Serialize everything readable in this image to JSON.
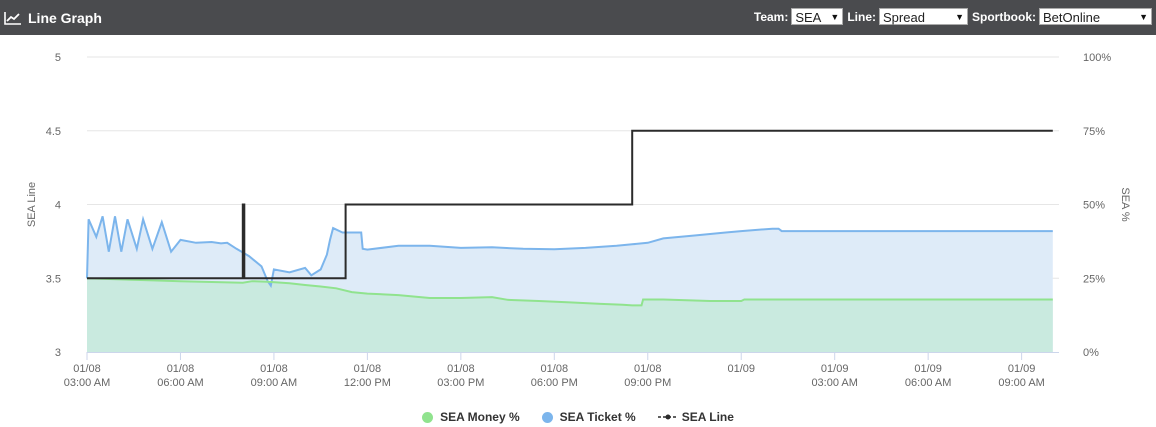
{
  "header": {
    "title": "Line Graph",
    "icon": "line-chart-icon",
    "team_label": "Team:",
    "team_value": "SEA",
    "line_label": "Line:",
    "line_value": "Spread",
    "sportbook_label": "Sportbook:",
    "sportbook_value": "BetOnline"
  },
  "colors": {
    "header_bg": "#4a4b4e",
    "money": "#90e38e",
    "money_fill": "#c9eadf",
    "ticket": "#7cb5ec",
    "ticket_fill": "#deebf8",
    "line": "#2b2b2b",
    "grid": "#e6e6e6"
  },
  "chart_data": {
    "type": "line",
    "x_unit": "hours since 01/08 03:00 AM",
    "x_range": [
      0,
      31.2
    ],
    "x_ticks": [
      {
        "x": 0,
        "date": "01/08",
        "time": "03:00 AM"
      },
      {
        "x": 3,
        "date": "01/08",
        "time": "06:00 AM"
      },
      {
        "x": 6,
        "date": "01/08",
        "time": "09:00 AM"
      },
      {
        "x": 9,
        "date": "01/08",
        "time": "12:00 PM"
      },
      {
        "x": 12,
        "date": "01/08",
        "time": "03:00 PM"
      },
      {
        "x": 15,
        "date": "01/08",
        "time": "06:00 PM"
      },
      {
        "x": 18,
        "date": "01/08",
        "time": "09:00 PM"
      },
      {
        "x": 21,
        "date": "01/09",
        "time": ""
      },
      {
        "x": 24,
        "date": "01/09",
        "time": "03:00 AM"
      },
      {
        "x": 27,
        "date": "01/09",
        "time": "06:00 AM"
      },
      {
        "x": 30,
        "date": "01/09",
        "time": "09:00 AM"
      }
    ],
    "y_left": {
      "label": "SEA Line",
      "range": [
        3,
        5
      ],
      "ticks": [
        "3",
        "3.5",
        "4",
        "4.5",
        "5"
      ]
    },
    "y_right": {
      "label": "SEA %",
      "range": [
        0,
        100
      ],
      "ticks": [
        "0%",
        "25%",
        "50%",
        "75%",
        "100%"
      ]
    },
    "grid": true,
    "legend_position": "bottom-center",
    "series": [
      {
        "name": "SEA Money %",
        "axis": "right",
        "kind": "area",
        "points": [
          [
            0,
            25
          ],
          [
            2,
            24.3
          ],
          [
            3,
            24
          ],
          [
            5,
            23.5
          ],
          [
            5.3,
            24
          ],
          [
            5.8,
            23.8
          ],
          [
            6.5,
            23.3
          ],
          [
            7,
            22.7
          ],
          [
            7.5,
            22.2
          ],
          [
            8,
            21.6
          ],
          [
            8.5,
            20.3
          ],
          [
            9,
            19.8
          ],
          [
            10,
            19.3
          ],
          [
            11,
            18.3
          ],
          [
            12,
            18.3
          ],
          [
            13,
            18.6
          ],
          [
            13.5,
            17.7
          ],
          [
            14.5,
            17.3
          ],
          [
            15.5,
            16.8
          ],
          [
            16.5,
            16.3
          ],
          [
            17.2,
            16
          ],
          [
            17.5,
            15.8
          ],
          [
            17.8,
            15.8
          ],
          [
            17.85,
            17.8
          ],
          [
            18.5,
            17.8
          ],
          [
            20,
            17.3
          ],
          [
            21,
            17.3
          ],
          [
            21.1,
            17.8
          ],
          [
            31,
            17.8
          ]
        ]
      },
      {
        "name": "SEA Ticket %",
        "axis": "right",
        "kind": "area",
        "points": [
          [
            0,
            25
          ],
          [
            0.05,
            45
          ],
          [
            0.3,
            39
          ],
          [
            0.5,
            46
          ],
          [
            0.7,
            34
          ],
          [
            0.9,
            46
          ],
          [
            1.1,
            34
          ],
          [
            1.3,
            45
          ],
          [
            1.6,
            35
          ],
          [
            1.8,
            45
          ],
          [
            2.1,
            35
          ],
          [
            2.4,
            44
          ],
          [
            2.7,
            34
          ],
          [
            3,
            38
          ],
          [
            3.5,
            37
          ],
          [
            4,
            37.3
          ],
          [
            4.3,
            36.8
          ],
          [
            4.5,
            37
          ],
          [
            4.8,
            35
          ],
          [
            5.2,
            32.5
          ],
          [
            5.6,
            29
          ],
          [
            5.8,
            24
          ],
          [
            5.9,
            22.5
          ],
          [
            6,
            28
          ],
          [
            6.5,
            27
          ],
          [
            7,
            28.5
          ],
          [
            7.2,
            26
          ],
          [
            7.5,
            28
          ],
          [
            7.7,
            33
          ],
          [
            7.8,
            38
          ],
          [
            7.9,
            42
          ],
          [
            8.2,
            40.5
          ],
          [
            8.8,
            40.5
          ],
          [
            8.85,
            35
          ],
          [
            9,
            34.7
          ],
          [
            10,
            36
          ],
          [
            11,
            36
          ],
          [
            12,
            35.3
          ],
          [
            13,
            35.5
          ],
          [
            14,
            35
          ],
          [
            15,
            34.8
          ],
          [
            16,
            35.3
          ],
          [
            17,
            36
          ],
          [
            17.5,
            36.5
          ],
          [
            18,
            37
          ],
          [
            18.5,
            38.5
          ],
          [
            19.5,
            39.5
          ],
          [
            20.5,
            40.5
          ],
          [
            21,
            41
          ],
          [
            22,
            41.8
          ],
          [
            22.2,
            41.8
          ],
          [
            22.3,
            41
          ],
          [
            31,
            41
          ]
        ]
      },
      {
        "name": "SEA Line",
        "axis": "left",
        "kind": "step",
        "points": [
          [
            0,
            3.5
          ],
          [
            5,
            3.5
          ],
          [
            5,
            4
          ],
          [
            5.05,
            4
          ],
          [
            5.05,
            3.5
          ],
          [
            8.3,
            3.5
          ],
          [
            8.3,
            4
          ],
          [
            17.5,
            4
          ],
          [
            17.5,
            4.5
          ],
          [
            31,
            4.5
          ]
        ]
      }
    ]
  }
}
